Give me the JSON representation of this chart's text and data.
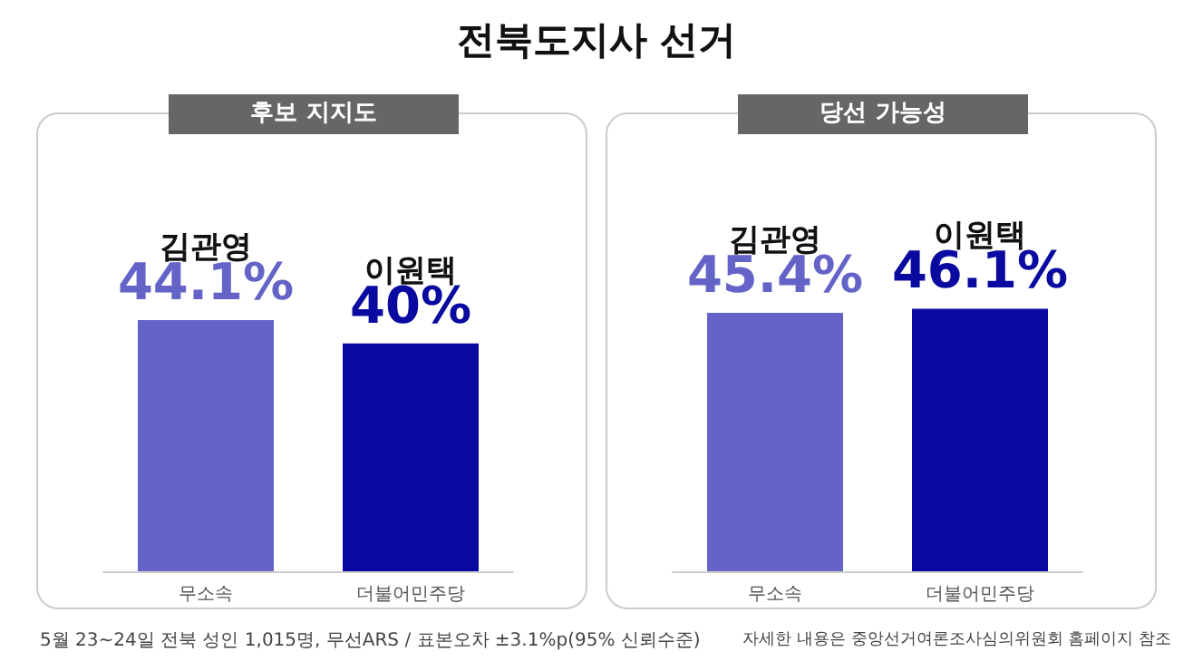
{
  "chart_data": [
    {
      "type": "bar",
      "title": "전북도지사 선거",
      "subtitle": "후보 지지도",
      "categories": [
        "무소속",
        "더불어민주당"
      ],
      "values": [
        44.1,
        40
      ],
      "colors": [
        "#6464c8",
        "#0a0aa0"
      ],
      "value_labels": [
        "44.1%",
        "40%"
      ],
      "annotations": [
        {
          "text": "김관영",
          "x": "무소속",
          "y": 44.1
        },
        {
          "text": "이원택",
          "x": "더불어민주당",
          "y": 40
        },
        "5월 23~24일 전북 성인 1,015명, 무선ARS / 표본오차 ±3.1%p(95% 신뢰수준)"
      ]
    },
    {
      "type": "bar",
      "subtitle": "당선 가능성",
      "categories": [
        "무소속",
        "더불어민주당"
      ],
      "values": [
        45.4,
        46.1
      ],
      "colors": [
        "#6464c8",
        "#0a0aa0"
      ],
      "value_labels": [
        "45.4%",
        "46.1%"
      ],
      "annotations": [
        {
          "text": "김관영",
          "x": "무소속",
          "y": 45.4
        },
        {
          "text": "이원택",
          "x": "더불어민주당",
          "y": 46.1
        },
        "자세한 내용은 중앙선거여론조사심의위원회 홈페이지 참조"
      ]
    }
  ]
}
